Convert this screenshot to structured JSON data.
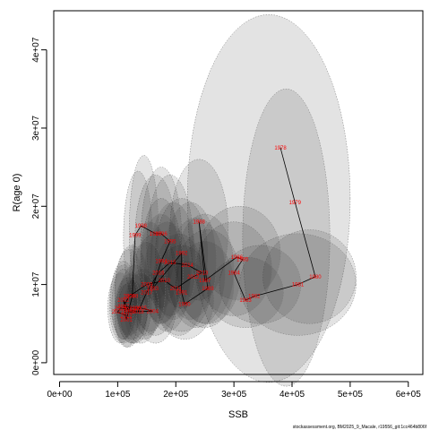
{
  "chart_data": {
    "type": "scatter",
    "xlabel": "SSB",
    "ylabel": "R(age 0)",
    "xlim": [
      -10000,
      625000
    ],
    "ylim": [
      -1500000,
      45000000
    ],
    "x_ticks": [
      {
        "value": 0,
        "label": "0e+00"
      },
      {
        "value": 100000,
        "label": "1e+05"
      },
      {
        "value": 200000,
        "label": "2e+05"
      },
      {
        "value": 300000,
        "label": "3e+05"
      },
      {
        "value": 400000,
        "label": "4e+05"
      },
      {
        "value": 500000,
        "label": "5e+05"
      },
      {
        "value": 600000,
        "label": "6e+05"
      }
    ],
    "y_ticks": [
      {
        "value": 0,
        "label": "0e+00"
      },
      {
        "value": 10000000,
        "label": "1e+07"
      },
      {
        "value": 20000000,
        "label": "2e+07"
      },
      {
        "value": 30000000,
        "label": "3e+07"
      },
      {
        "value": 40000000,
        "label": "4e+07"
      }
    ],
    "points": [
      {
        "year": "1978",
        "x": 380000,
        "y": 27500000
      },
      {
        "year": "1979",
        "x": 405000,
        "y": 20500000
      },
      {
        "year": "1980",
        "x": 440000,
        "y": 11000000
      },
      {
        "year": "1981",
        "x": 410000,
        "y": 10000000
      },
      {
        "year": "1982",
        "x": 335000,
        "y": 8500000
      },
      {
        "year": "1983",
        "x": 320000,
        "y": 8000000
      },
      {
        "year": "1984",
        "x": 300000,
        "y": 11500000
      },
      {
        "year": "1985",
        "x": 315000,
        "y": 13200000
      },
      {
        "year": "1986",
        "x": 305000,
        "y": 13500000
      },
      {
        "year": "1987",
        "x": 250000,
        "y": 10500000
      },
      {
        "year": "1988",
        "x": 240000,
        "y": 18000000
      },
      {
        "year": "1989",
        "x": 255000,
        "y": 9500000
      },
      {
        "year": "1990",
        "x": 215000,
        "y": 7500000
      },
      {
        "year": "1991",
        "x": 210000,
        "y": 9000000
      },
      {
        "year": "1992",
        "x": 210000,
        "y": 14000000
      },
      {
        "year": "1993",
        "x": 160000,
        "y": 9500000
      },
      {
        "year": "1994",
        "x": 175000,
        "y": 13000000
      },
      {
        "year": "1995",
        "x": 190000,
        "y": 15500000
      },
      {
        "year": "1996",
        "x": 175000,
        "y": 16500000
      },
      {
        "year": "1997",
        "x": 165000,
        "y": 16500000
      },
      {
        "year": "1998",
        "x": 140000,
        "y": 17500000
      },
      {
        "year": "1999",
        "x": 130000,
        "y": 16300000
      },
      {
        "year": "2000",
        "x": 125000,
        "y": 8500000
      },
      {
        "year": "2001",
        "x": 115000,
        "y": 5500000
      },
      {
        "year": "2002",
        "x": 110000,
        "y": 8000000
      },
      {
        "year": "2003",
        "x": 120000,
        "y": 6500000
      },
      {
        "year": "2004",
        "x": 160000,
        "y": 6600000
      },
      {
        "year": "2005",
        "x": 140000,
        "y": 7000000
      },
      {
        "year": "2006",
        "x": 130000,
        "y": 7000000
      },
      {
        "year": "2007",
        "x": 110000,
        "y": 7200000
      },
      {
        "year": "2008",
        "x": 120000,
        "y": 8500000
      },
      {
        "year": "2009",
        "x": 150000,
        "y": 10000000
      },
      {
        "year": "2010",
        "x": 180000,
        "y": 10500000
      },
      {
        "year": "2011",
        "x": 200000,
        "y": 9500000
      },
      {
        "year": "2012",
        "x": 230000,
        "y": 11000000
      },
      {
        "year": "2013",
        "x": 245000,
        "y": 11500000
      },
      {
        "year": "2014",
        "x": 220000,
        "y": 12500000
      },
      {
        "year": "2015",
        "x": 190000,
        "y": 12800000
      },
      {
        "year": "2016",
        "x": 170000,
        "y": 11500000
      },
      {
        "year": "2017",
        "x": 150000,
        "y": 9000000
      },
      {
        "year": "2018",
        "x": 135000,
        "y": 6500000
      },
      {
        "year": "2019",
        "x": 120000,
        "y": 6800000
      },
      {
        "year": "2020",
        "x": 105000,
        "y": 7000000
      },
      {
        "year": "2021",
        "x": 100000,
        "y": 6500000
      },
      {
        "year": "2022",
        "x": 115000,
        "y": 6000000
      }
    ],
    "ellipses": [
      {
        "cx": 360000,
        "cy": 21000000,
        "rx": 140000,
        "ry": 23500000
      },
      {
        "cx": 390000,
        "cy": 16000000,
        "rx": 75000,
        "ry": 19000000
      },
      {
        "cx": 430000,
        "cy": 11000000,
        "rx": 80000,
        "ry": 6000000
      },
      {
        "cx": 410000,
        "cy": 10000000,
        "rx": 100000,
        "ry": 6500000
      },
      {
        "cx": 345000,
        "cy": 10000000,
        "rx": 70000,
        "ry": 5000000
      },
      {
        "cx": 320000,
        "cy": 9000000,
        "rx": 65000,
        "ry": 4500000
      },
      {
        "cx": 300000,
        "cy": 12000000,
        "rx": 65000,
        "ry": 6000000
      },
      {
        "cx": 310000,
        "cy": 14000000,
        "rx": 70000,
        "ry": 6000000
      },
      {
        "cx": 255000,
        "cy": 11000000,
        "rx": 55000,
        "ry": 6000000
      },
      {
        "cx": 240000,
        "cy": 17000000,
        "rx": 50000,
        "ry": 9000000
      },
      {
        "cx": 250000,
        "cy": 10000000,
        "rx": 50000,
        "ry": 5500000
      },
      {
        "cx": 215000,
        "cy": 8000000,
        "rx": 50000,
        "ry": 5000000
      },
      {
        "cx": 210000,
        "cy": 9500000,
        "rx": 50000,
        "ry": 5500000
      },
      {
        "cx": 210000,
        "cy": 14000000,
        "rx": 45000,
        "ry": 7000000
      },
      {
        "cx": 165000,
        "cy": 10000000,
        "rx": 40000,
        "ry": 6500000
      },
      {
        "cx": 175000,
        "cy": 13000000,
        "rx": 35000,
        "ry": 8000000
      },
      {
        "cx": 190000,
        "cy": 15000000,
        "rx": 40000,
        "ry": 9000000
      },
      {
        "cx": 175000,
        "cy": 16000000,
        "rx": 35000,
        "ry": 9000000
      },
      {
        "cx": 165000,
        "cy": 16000000,
        "rx": 35000,
        "ry": 8000000
      },
      {
        "cx": 145000,
        "cy": 17000000,
        "rx": 25000,
        "ry": 9500000
      },
      {
        "cx": 135000,
        "cy": 16000000,
        "rx": 25000,
        "ry": 8500000
      },
      {
        "cx": 125000,
        "cy": 9000000,
        "rx": 30000,
        "ry": 6000000
      },
      {
        "cx": 115000,
        "cy": 6000000,
        "rx": 20000,
        "ry": 4000000
      },
      {
        "cx": 110000,
        "cy": 8000000,
        "rx": 22000,
        "ry": 5000000
      },
      {
        "cx": 125000,
        "cy": 6500000,
        "rx": 25000,
        "ry": 4000000
      },
      {
        "cx": 165000,
        "cy": 7000000,
        "rx": 35000,
        "ry": 4500000
      },
      {
        "cx": 145000,
        "cy": 7500000,
        "rx": 30000,
        "ry": 4500000
      },
      {
        "cx": 130000,
        "cy": 7500000,
        "rx": 28000,
        "ry": 5000000
      },
      {
        "cx": 110000,
        "cy": 7500000,
        "rx": 20000,
        "ry": 4500000
      },
      {
        "cx": 120000,
        "cy": 9000000,
        "rx": 25000,
        "ry": 5500000
      },
      {
        "cx": 155000,
        "cy": 11000000,
        "rx": 35000,
        "ry": 7000000
      },
      {
        "cx": 185000,
        "cy": 11000000,
        "rx": 40000,
        "ry": 7000000
      },
      {
        "cx": 205000,
        "cy": 10000000,
        "rx": 45000,
        "ry": 6500000
      },
      {
        "cx": 235000,
        "cy": 11500000,
        "rx": 50000,
        "ry": 7000000
      },
      {
        "cx": 250000,
        "cy": 12000000,
        "rx": 50000,
        "ry": 7000000
      },
      {
        "cx": 225000,
        "cy": 13000000,
        "rx": 45000,
        "ry": 7500000
      },
      {
        "cx": 195000,
        "cy": 13000000,
        "rx": 40000,
        "ry": 7500000
      },
      {
        "cx": 175000,
        "cy": 12000000,
        "rx": 38000,
        "ry": 7000000
      },
      {
        "cx": 150000,
        "cy": 9500000,
        "rx": 32000,
        "ry": 6000000
      },
      {
        "cx": 140000,
        "cy": 7000000,
        "rx": 30000,
        "ry": 4500000
      },
      {
        "cx": 125000,
        "cy": 7000000,
        "rx": 28000,
        "ry": 4500000
      },
      {
        "cx": 110000,
        "cy": 7500000,
        "rx": 24000,
        "ry": 5000000
      },
      {
        "cx": 105000,
        "cy": 7000000,
        "rx": 22000,
        "ry": 4500000
      },
      {
        "cx": 118000,
        "cy": 6500000,
        "rx": 24000,
        "ry": 4500000
      }
    ],
    "footnote": "stockassessment.org, BM2025_9_Macale, r19556_git:1cc464b806f"
  }
}
